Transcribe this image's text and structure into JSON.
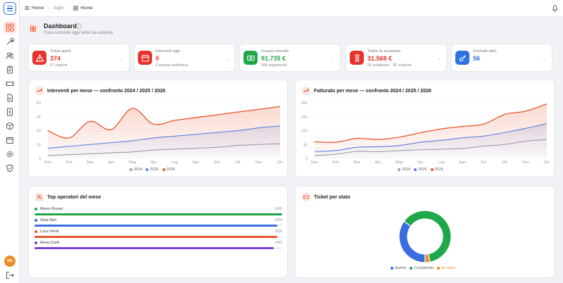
{
  "breadcrumb": {
    "home": "Home",
    "login": "login",
    "current": "Home"
  },
  "header": {
    "title": "Dashboard",
    "subtitle": "Cosa succede oggi nella tua azienda",
    "help": "?"
  },
  "stats": [
    {
      "label": "Ticket aperti",
      "value": "374",
      "note": "27 urgenti",
      "color": "#e8332c",
      "icon": "warning-icon"
    },
    {
      "label": "Interventi oggi",
      "value": "0",
      "note": "0 questa settimana",
      "color": "#e8332c",
      "icon": "calendar-icon"
    },
    {
      "label": "Incasso mensile",
      "value": "91.735 €",
      "note": "268 pagamenti",
      "color": "#1fa74a",
      "icon": "cash-icon"
    },
    {
      "label": "Totale da incassare",
      "value": "31.568 €",
      "note": "92 scadenze · 35 scadute",
      "color": "#e8332c",
      "icon": "hourglass-icon"
    },
    {
      "label": "Contratti attivi",
      "value": "56",
      "note": "",
      "color": "#2f6fdf",
      "icon": "key-icon"
    }
  ],
  "user": {
    "initials": "BR"
  },
  "colors": {
    "y2024": "#9a9aa8",
    "y2025": "#5b7fe0",
    "y2026": "#e8542c"
  },
  "panels": {
    "interventi": {
      "title": "Interventi per mese — confronto 2024 / 2025 / 2026"
    },
    "fatturato": {
      "title": "Fatturato per mese — confronto 2024 / 2025 / 2026"
    },
    "operatori": {
      "title": "Top operatori del mese"
    },
    "ticket": {
      "title": "Ticket per stato"
    }
  },
  "operators": [
    {
      "name": "Marco Russo",
      "count": "3/86",
      "fraction": 1.0,
      "color": "#1fa74a"
    },
    {
      "name": "Sara Neri",
      "count": "4/84",
      "fraction": 0.98,
      "color": "#3a6ee0"
    },
    {
      "name": "Luca Verdi",
      "count": "4/84",
      "fraction": 0.98,
      "color": "#e8542c"
    },
    {
      "name": "Anna Conti",
      "count": "3/83",
      "fraction": 0.965,
      "color": "#7a3fd6"
    }
  ],
  "chart_data": [
    {
      "type": "area",
      "title": "Interventi per mese — confronto 2024 / 2025 / 2026",
      "categories": [
        "Gen",
        "Feb",
        "Mar",
        "Apr",
        "Mag",
        "Giu",
        "Lug",
        "Ago",
        "Set",
        "Ott",
        "Nov",
        "Dic"
      ],
      "yticks": [
        "0",
        "15",
        "30",
        "45",
        "60"
      ],
      "ylim": [
        0,
        60
      ],
      "grid": true,
      "legend_position": "bottom-center",
      "series": [
        {
          "name": "2024",
          "values": [
            3,
            4,
            5,
            6,
            7,
            9,
            10,
            11,
            12,
            14,
            15,
            16
          ]
        },
        {
          "name": "2025",
          "values": [
            11,
            13,
            15,
            17,
            19,
            22,
            24,
            26,
            28,
            30,
            33,
            35
          ]
        },
        {
          "name": "2026",
          "values": [
            30,
            22,
            40,
            31,
            54,
            37,
            41,
            44,
            47,
            50,
            53,
            56
          ]
        }
      ]
    },
    {
      "type": "area",
      "title": "Fatturato per mese — confronto 2024 / 2025 / 2026",
      "categories": [
        "Gen",
        "Feb",
        "Mar",
        "Apr",
        "Mag",
        "Giu",
        "Lug",
        "Ago",
        "Set",
        "Ott",
        "Nov",
        "Dic"
      ],
      "yticks": [
        "0",
        "5k",
        "10k",
        "15k",
        "20k"
      ],
      "ylim": [
        0,
        20000
      ],
      "grid": true,
      "legend_position": "bottom-center",
      "series": [
        {
          "name": "2024",
          "values": [
            1000,
            1500,
            2500,
            2400,
            2800,
            3100,
            3300,
            3600,
            4400,
            5000,
            6200,
            6800
          ]
        },
        {
          "name": "2025",
          "values": [
            2500,
            2800,
            4000,
            4200,
            4600,
            5800,
            6500,
            7400,
            8000,
            9300,
            10800,
            12500
          ]
        },
        {
          "name": "2026",
          "values": [
            6000,
            5800,
            7200,
            6800,
            7600,
            9200,
            10600,
            11500,
            12300,
            15800,
            17000,
            19600
          ]
        }
      ]
    },
    {
      "type": "pie",
      "title": "Ticket per stato",
      "legend_position": "bottom-center",
      "series": [
        {
          "name": "Aperto",
          "color": "#3a6ee0",
          "value": 35
        },
        {
          "name": "Completato",
          "color": "#1fa74a",
          "value": 62
        },
        {
          "name": "In corso",
          "color": "#f08a24",
          "value": 3
        }
      ]
    }
  ]
}
